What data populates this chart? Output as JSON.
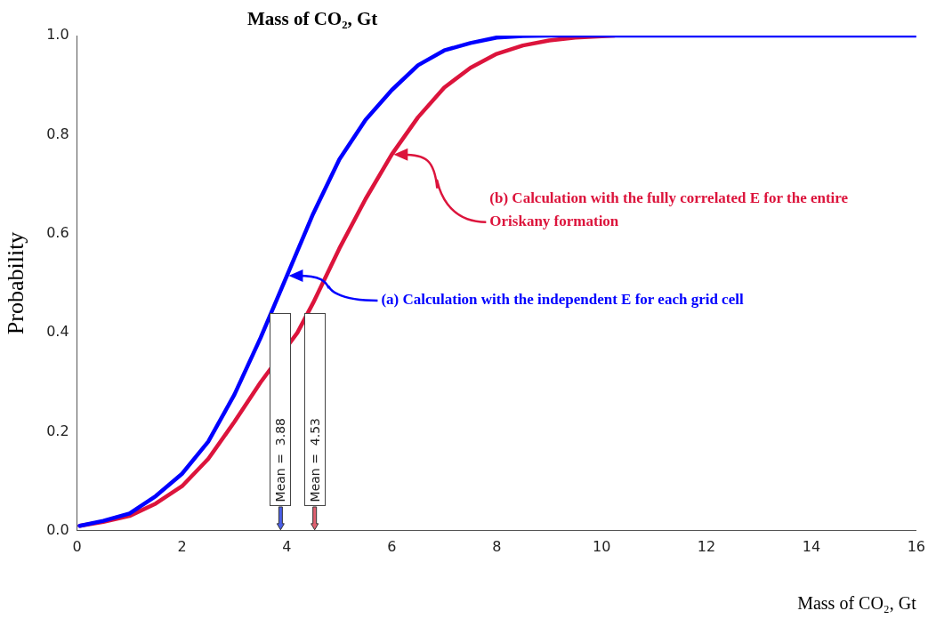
{
  "chart_data": {
    "type": "line",
    "title": "Mass of CO₂, Gt",
    "xlabel": "Mass of CO₂, Gt",
    "ylabel": "Probability",
    "xlim": [
      0,
      16
    ],
    "xticks": [
      0,
      2,
      4,
      6,
      8,
      10,
      12,
      14,
      16
    ],
    "ylim": [
      0,
      1
    ],
    "yticks": [
      {
        "value": 0,
        "label": "0.0"
      },
      {
        "value": 0.2,
        "label": "0.2"
      },
      {
        "value": 0.4,
        "label": "0.4"
      },
      {
        "value": 0.6,
        "label": "0.6"
      },
      {
        "value": 0.8,
        "label": "0.8"
      },
      {
        "value": 1,
        "label": "1.0"
      }
    ],
    "grid": false,
    "legend": false,
    "marker": "none",
    "line_style": "solid",
    "series": [
      {
        "color": "#0000ff",
        "x": [
          0.05,
          0.5,
          1,
          1.5,
          2,
          2.5,
          3,
          3.5,
          4,
          4.5,
          5,
          5.5,
          6,
          6.5,
          7,
          7.5,
          8,
          8.5,
          9,
          10,
          12,
          14,
          16
        ],
        "values": [
          0.01,
          0.02,
          0.035,
          0.07,
          0.115,
          0.18,
          0.275,
          0.39,
          0.515,
          0.64,
          0.75,
          0.83,
          0.89,
          0.94,
          0.97,
          0.985,
          0.996,
          0.999,
          1,
          1,
          1,
          1,
          1
        ]
      },
      {
        "color": "#dc143c",
        "x": [
          0.05,
          0.5,
          1,
          1.5,
          2,
          2.5,
          3,
          3.5,
          4.2,
          4.5,
          5,
          5.5,
          6,
          6.5,
          7,
          7.5,
          8,
          8.5,
          9,
          9.5,
          10.25
        ],
        "values": [
          0.01,
          0.018,
          0.03,
          0.055,
          0.09,
          0.145,
          0.22,
          0.3,
          0.4,
          0.46,
          0.57,
          0.67,
          0.76,
          0.835,
          0.895,
          0.935,
          0.963,
          0.98,
          0.99,
          0.996,
          1
        ]
      }
    ],
    "ref_lines": [
      {
        "axis": "x",
        "value": 3.88,
        "label": "Mean =  3.88",
        "color": "#4a5ee8"
      },
      {
        "axis": "x",
        "value": 4.53,
        "label": "Mean =  4.53",
        "color": "#e06070"
      }
    ],
    "annotations": [
      "(a) Calculation with the independent E for each grid cell",
      "(b) Calculation with the fully correlated E for the entire Oriskany formation"
    ]
  }
}
